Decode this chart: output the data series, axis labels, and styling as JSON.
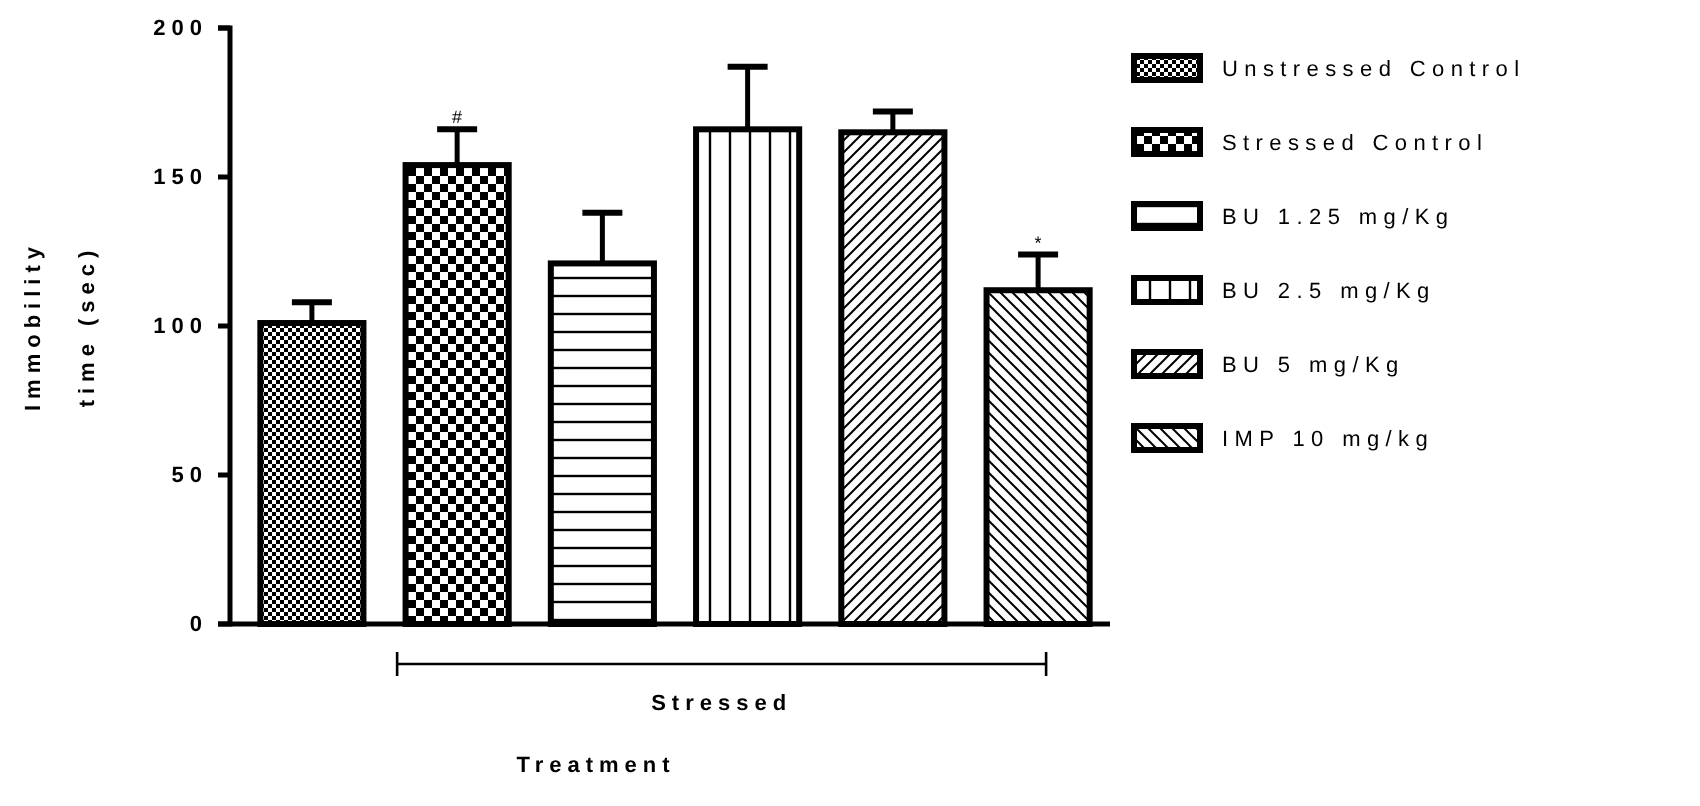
{
  "chart_data": {
    "type": "bar",
    "ylabel": "Immobility\ntime (sec)",
    "categories": [
      null,
      null,
      null,
      null,
      null,
      null
    ],
    "series": [
      {
        "name": "Unstressed Control",
        "color": "#000000",
        "values": [
          101,
          null,
          null,
          null,
          null,
          null
        ],
        "errors": [
          [
            101,
            108
          ],
          null,
          null,
          null,
          null,
          null
        ]
      },
      {
        "name": "Stressed Control",
        "color": "#000000",
        "values": [
          null,
          154,
          null,
          null,
          null,
          null
        ],
        "errors": [
          null,
          [
            154,
            166
          ],
          null,
          null,
          null,
          null
        ]
      },
      {
        "name": "BU 1.25 mg/Kg",
        "color": "#000000",
        "values": [
          null,
          null,
          121,
          null,
          null,
          null
        ],
        "errors": [
          null,
          null,
          [
            121,
            138
          ],
          null,
          null,
          null
        ]
      },
      {
        "name": "BU 2.5 mg/Kg",
        "color": "#000000",
        "values": [
          null,
          null,
          null,
          166,
          null,
          null
        ],
        "errors": [
          null,
          null,
          null,
          [
            166,
            187
          ],
          null,
          null
        ]
      },
      {
        "name": "BU 5 mg/Kg",
        "color": "#000000",
        "values": [
          null,
          null,
          null,
          null,
          165,
          null
        ],
        "errors": [
          null,
          null,
          null,
          null,
          [
            165,
            172
          ],
          null
        ]
      },
      {
        "name": "IMP 10 mg/kg",
        "color": "#000000",
        "values": [
          null,
          null,
          null,
          null,
          null,
          112
        ],
        "errors": [
          null,
          null,
          null,
          null,
          null,
          [
            112,
            124
          ]
        ]
      }
    ],
    "ylim": [
      0,
      200
    ],
    "yticks": [
      0,
      50,
      100,
      150,
      200
    ],
    "grid": false,
    "legend": "right",
    "annotations": [
      {
        "text": "#",
        "y": 168
      },
      {
        "text": "*",
        "y": 126
      },
      "Stressed",
      "Treatment"
    ]
  }
}
